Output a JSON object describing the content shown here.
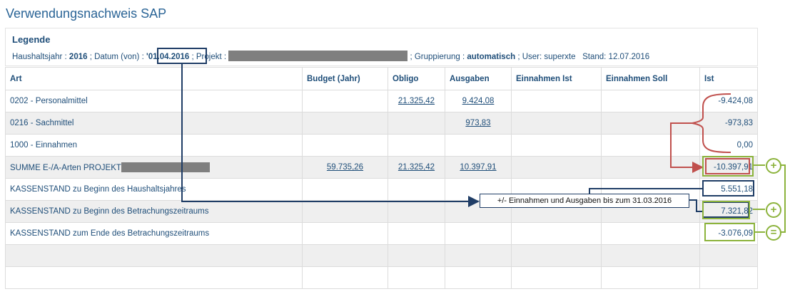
{
  "page": {
    "title": "Verwendungsnachweis SAP"
  },
  "legend": {
    "heading": "Legende",
    "haushaltsjahr_label": "Haushaltsjahr :",
    "haushaltsjahr_value": "2016",
    "datum_label": "; Datum (von) :",
    "datum_value": "'01.04.2016",
    "projekt_label": "; Projekt :",
    "gruppierung_label": "; Gruppierung :",
    "gruppierung_value": "automatisch",
    "user_text": "; User: superxte",
    "stand_text": "Stand: 12.07.2016"
  },
  "table": {
    "headers": [
      "Art",
      "Budget (Jahr)",
      "Obligo",
      "Ausgaben",
      "Einnahmen Ist",
      "Einnahmen Soll",
      "Ist"
    ],
    "rows": [
      {
        "art": "0202 - Personalmittel",
        "budget": "",
        "obligo": "21.325,42",
        "ausgaben": "9.424,08",
        "ein_ist": "",
        "ein_soll": "",
        "ist": "-9.424,08"
      },
      {
        "art": "0216 - Sachmittel",
        "budget": "",
        "obligo": "",
        "ausgaben": "973,83",
        "ein_ist": "",
        "ein_soll": "",
        "ist": "-973,83"
      },
      {
        "art": "1000 - Einnahmen",
        "budget": "",
        "obligo": "",
        "ausgaben": "",
        "ein_ist": "",
        "ein_soll": "",
        "ist": "0,00"
      },
      {
        "art": "SUMME E-/A-Arten PROJEKT",
        "budget": "59.735,26",
        "obligo": "21.325,42",
        "ausgaben": "10.397,91",
        "ein_ist": "",
        "ein_soll": "",
        "ist": "-10.397,91"
      },
      {
        "art": "KASSENSTAND zu Beginn des Haushaltsjahres",
        "budget": "",
        "obligo": "",
        "ausgaben": "",
        "ein_ist": "",
        "ein_soll": "",
        "ist": "5.551,18"
      },
      {
        "art": "KASSENSTAND zu Beginn des Betrachungszeitraums",
        "budget": "",
        "obligo": "",
        "ausgaben": "",
        "ein_ist": "",
        "ein_soll": "",
        "ist": "7.321,82"
      },
      {
        "art": "KASSENSTAND zum Ende des Betrachungszeitraums",
        "budget": "",
        "obligo": "",
        "ausgaben": "",
        "ein_ist": "",
        "ein_soll": "",
        "ist": "-3.076,09"
      }
    ]
  },
  "annotation": {
    "callout_text": "+/- Einnahmen und Ausgaben bis zum 31.03.2016",
    "plus_symbol": "+",
    "equals_symbol": "=",
    "colors": {
      "blue": "#1f3d66",
      "red": "#c0504d",
      "green": "#8cb33c"
    }
  }
}
